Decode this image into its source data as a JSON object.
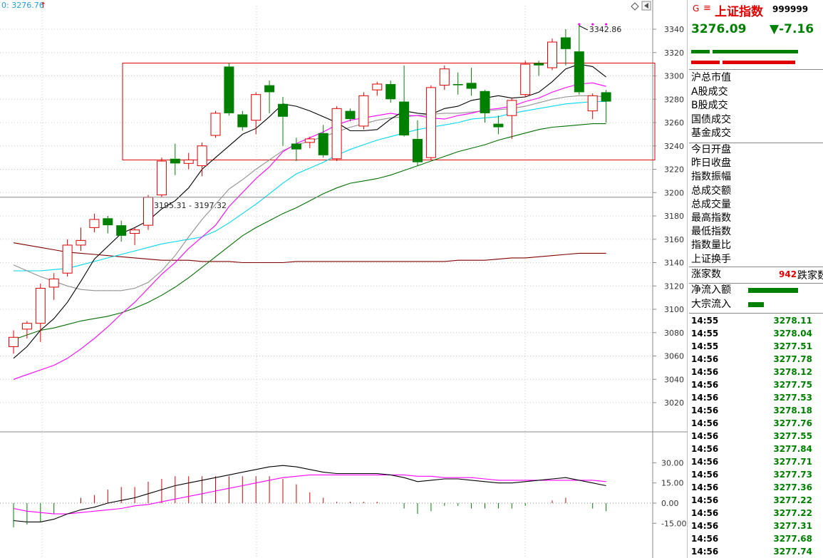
{
  "header": {
    "readout": "0: 3276.76",
    "arrow": "↑"
  },
  "index": {
    "badge_g": "G",
    "badge_e": "≡",
    "name": "上证指数",
    "code": "999999",
    "price": "3276.09",
    "change": "▼-7.16",
    "down_color": "#008000",
    "up_color": "#e00000"
  },
  "panel": {
    "labels1": [
      "沪总市值",
      "A股成交",
      "B股成交",
      "国债成交",
      "基金成交"
    ],
    "labels2": [
      "今日开盘",
      "昨日收盘",
      "指数振幅",
      "总成交额",
      "总成交量",
      "最高指数",
      "最低指数",
      "指数量比",
      "上证换手"
    ],
    "breadth": {
      "up_label": "涨家数",
      "down_value": "942",
      "down_label": "跌家数"
    },
    "flows": [
      {
        "label": "净流入额",
        "level": 0.78
      },
      {
        "label": "大宗流入",
        "level": 0.24
      }
    ],
    "ratio_bars": {
      "green_top": 0.8,
      "red_bottom": 0.8
    }
  },
  "ticks": [
    {
      "time": "14:55",
      "price": "3278.11"
    },
    {
      "time": "14:55",
      "price": "3278.04"
    },
    {
      "time": "14:55",
      "price": "3277.51"
    },
    {
      "time": "14:56",
      "price": "3277.78"
    },
    {
      "time": "14:56",
      "price": "3278.12"
    },
    {
      "time": "14:56",
      "price": "3277.75"
    },
    {
      "time": "14:56",
      "price": "3277.53"
    },
    {
      "time": "14:56",
      "price": "3278.18"
    },
    {
      "time": "14:56",
      "price": "3277.76"
    },
    {
      "time": "14:56",
      "price": "3277.55"
    },
    {
      "time": "14:56",
      "price": "3277.84"
    },
    {
      "time": "14:56",
      "price": "3277.71"
    },
    {
      "time": "14:56",
      "price": "3277.73"
    },
    {
      "time": "14:56",
      "price": "3277.36"
    },
    {
      "time": "14:56",
      "price": "3277.22"
    },
    {
      "time": "14:56",
      "price": "3277.22"
    },
    {
      "time": "14:56",
      "price": "3277.31"
    },
    {
      "time": "14:56",
      "price": "3277.68"
    },
    {
      "time": "14:56",
      "price": "3277.74"
    }
  ],
  "chart_data": [
    {
      "type": "candlestick",
      "title": "",
      "ylim": [
        3000,
        3355
      ],
      "yticks": [
        3020,
        3040,
        3060,
        3080,
        3100,
        3120,
        3140,
        3160,
        3180,
        3200,
        3220,
        3240,
        3260,
        3280,
        3300,
        3320,
        3340
      ],
      "annotations": {
        "high_label": "3342.86",
        "level_label": "3195.31 - 3197.32",
        "level_value": 3196
      },
      "box": {
        "y_top": 3311,
        "y_bottom": 3228
      },
      "colors": {
        "up": "#e00000",
        "down": "#008000",
        "ma5": "#000000",
        "ma10": "#ff00ff",
        "ma20": "#909090",
        "ma30": "#00d8f0",
        "ma60": "#007000",
        "ma120": "#800000"
      },
      "candles": [
        {
          "o": 3068,
          "c": 3076,
          "h": 3082,
          "l": 3062
        },
        {
          "o": 3083,
          "c": 3088,
          "h": 3090,
          "l": 3075
        },
        {
          "o": 3088,
          "c": 3118,
          "h": 3122,
          "l": 3072
        },
        {
          "o": 3119,
          "c": 3126,
          "h": 3131,
          "l": 3108
        },
        {
          "o": 3131,
          "c": 3155,
          "h": 3160,
          "l": 3128
        },
        {
          "o": 3155,
          "c": 3159,
          "h": 3170,
          "l": 3150
        },
        {
          "o": 3170,
          "c": 3177,
          "h": 3182,
          "l": 3166
        },
        {
          "o": 3178,
          "c": 3172,
          "h": 3180,
          "l": 3165
        },
        {
          "o": 3172,
          "c": 3163,
          "h": 3176,
          "l": 3158
        },
        {
          "o": 3165,
          "c": 3168,
          "h": 3170,
          "l": 3155
        },
        {
          "o": 3172,
          "c": 3196,
          "h": 3198,
          "l": 3168
        },
        {
          "o": 3198,
          "c": 3227,
          "h": 3230,
          "l": 3196
        },
        {
          "o": 3229,
          "c": 3225,
          "h": 3242,
          "l": 3215
        },
        {
          "o": 3225,
          "c": 3228,
          "h": 3234,
          "l": 3220
        },
        {
          "o": 3223,
          "c": 3240,
          "h": 3243,
          "l": 3214
        },
        {
          "o": 3249,
          "c": 3268,
          "h": 3270,
          "l": 3247
        },
        {
          "o": 3308,
          "c": 3268,
          "h": 3311,
          "l": 3266
        },
        {
          "o": 3267,
          "c": 3256,
          "h": 3270,
          "l": 3253
        },
        {
          "o": 3262,
          "c": 3284,
          "h": 3286,
          "l": 3250
        },
        {
          "o": 3292,
          "c": 3286,
          "h": 3296,
          "l": 3268
        },
        {
          "o": 3276,
          "c": 3265,
          "h": 3282,
          "l": 3240
        },
        {
          "o": 3242,
          "c": 3237,
          "h": 3247,
          "l": 3227
        },
        {
          "o": 3243,
          "c": 3246,
          "h": 3248,
          "l": 3238
        },
        {
          "o": 3251,
          "c": 3232,
          "h": 3258,
          "l": 3230
        },
        {
          "o": 3229,
          "c": 3272,
          "h": 3274,
          "l": 3227
        },
        {
          "o": 3270,
          "c": 3263,
          "h": 3272,
          "l": 3261
        },
        {
          "o": 3257,
          "c": 3283,
          "h": 3286,
          "l": 3254
        },
        {
          "o": 3288,
          "c": 3293,
          "h": 3295,
          "l": 3283
        },
        {
          "o": 3293,
          "c": 3280,
          "h": 3296,
          "l": 3277
        },
        {
          "o": 3278,
          "c": 3249,
          "h": 3309,
          "l": 3248
        },
        {
          "o": 3246,
          "c": 3226,
          "h": 3262,
          "l": 3223
        },
        {
          "o": 3230,
          "c": 3290,
          "h": 3292,
          "l": 3228
        },
        {
          "o": 3292,
          "c": 3306,
          "h": 3309,
          "l": 3288
        },
        {
          "o": 3293,
          "c": 3292,
          "h": 3303,
          "l": 3284
        },
        {
          "o": 3294,
          "c": 3289,
          "h": 3307,
          "l": 3283
        },
        {
          "o": 3287,
          "c": 3268,
          "h": 3288,
          "l": 3260
        },
        {
          "o": 3259,
          "c": 3256,
          "h": 3266,
          "l": 3250
        },
        {
          "o": 3266,
          "c": 3279,
          "h": 3281,
          "l": 3246
        },
        {
          "o": 3284,
          "c": 3310,
          "h": 3313,
          "l": 3282
        },
        {
          "o": 3311,
          "c": 3309,
          "h": 3313,
          "l": 3300
        },
        {
          "o": 3307,
          "c": 3329,
          "h": 3332,
          "l": 3305
        },
        {
          "o": 3333,
          "c": 3323,
          "h": 3340,
          "l": 3309
        },
        {
          "o": 3321,
          "c": 3286,
          "h": 3343,
          "l": 3284
        },
        {
          "o": 3270,
          "c": 3283,
          "h": 3285,
          "l": 3263
        },
        {
          "o": 3286,
          "c": 3278,
          "h": 3288,
          "l": 3260
        }
      ],
      "ma": {
        "ma5": [
          3058,
          3068,
          3082,
          3092,
          3106,
          3124,
          3143,
          3154,
          3165,
          3170,
          3176,
          3186,
          3193,
          3204,
          3220,
          3230,
          3240,
          3250,
          3255,
          3265,
          3276,
          3274,
          3270,
          3265,
          3260,
          3253,
          3253,
          3254,
          3263,
          3270,
          3268,
          3267,
          3272,
          3274,
          3279,
          3281,
          3283,
          3281,
          3282,
          3286,
          3295,
          3306,
          3310,
          3308,
          3299
        ],
        "ma10": [
          3040,
          3044,
          3048,
          3052,
          3058,
          3066,
          3075,
          3085,
          3096,
          3106,
          3118,
          3130,
          3140,
          3152,
          3162,
          3172,
          3188,
          3200,
          3212,
          3222,
          3235,
          3242,
          3247,
          3252,
          3258,
          3262,
          3264,
          3266,
          3268,
          3266,
          3266,
          3264,
          3263,
          3266,
          3268,
          3271,
          3272,
          3274,
          3278,
          3281,
          3286,
          3290,
          3293,
          3294,
          3291
        ],
        "ma20": [
          3138,
          3133,
          3128,
          3124,
          3120,
          3117,
          3116,
          3116,
          3116,
          3118,
          3123,
          3133,
          3146,
          3162,
          3177,
          3190,
          3203,
          3211,
          3220,
          3228,
          3236,
          3241,
          3244,
          3248,
          3252,
          3256,
          3259,
          3262,
          3264,
          3265,
          3266,
          3267,
          3268,
          3268,
          3269,
          3270,
          3271,
          3272,
          3274,
          3277,
          3280,
          3282,
          3283,
          3283,
          3282
        ],
        "ma30": [
          3133,
          3133,
          3133,
          3134,
          3135,
          3138,
          3141,
          3144,
          3147,
          3150,
          3153,
          3156,
          3158,
          3160,
          3162,
          3167,
          3174,
          3182,
          3190,
          3199,
          3208,
          3216,
          3221,
          3226,
          3232,
          3237,
          3241,
          3245,
          3248,
          3251,
          3254,
          3256,
          3258,
          3260,
          3263,
          3264,
          3265,
          3268,
          3270,
          3272,
          3274,
          3276,
          3277,
          3278,
          3278
        ],
        "ma60": [
          3074,
          3078,
          3082,
          3084,
          3087,
          3090,
          3092,
          3094,
          3097,
          3101,
          3106,
          3112,
          3119,
          3127,
          3136,
          3145,
          3154,
          3163,
          3170,
          3176,
          3182,
          3187,
          3193,
          3199,
          3204,
          3208,
          3210,
          3212,
          3215,
          3219,
          3223,
          3227,
          3231,
          3235,
          3238,
          3241,
          3245,
          3248,
          3251,
          3254,
          3256,
          3257,
          3258,
          3259,
          3259
        ],
        "ma120": [
          3157,
          3155,
          3153,
          3151,
          3149,
          3148,
          3147,
          3146,
          3145,
          3144,
          3143,
          3142,
          3142,
          3142,
          3141,
          3141,
          3141,
          3140,
          3140,
          3140,
          3140,
          3141,
          3141,
          3141,
          3141,
          3141,
          3141,
          3141,
          3141,
          3141,
          3141,
          3141,
          3141,
          3142,
          3142,
          3142,
          3143,
          3144,
          3144,
          3145,
          3146,
          3147,
          3148,
          3148,
          3148
        ]
      }
    },
    {
      "type": "macd",
      "title": "",
      "ylim": [
        -22,
        44
      ],
      "yticks": [
        -15.0,
        0.0,
        15.0,
        30.0
      ],
      "ytick_labels": [
        "-15.00",
        "0.00",
        "15.00",
        "30.00"
      ],
      "colors": {
        "dif": "#000000",
        "dea": "#ff00ff",
        "pos": "#e00000",
        "neg": "#008000"
      },
      "dif": [
        -13,
        -14,
        -14,
        -12,
        -8,
        -5,
        -3,
        0,
        2,
        4,
        7,
        10,
        13,
        15,
        17,
        19,
        21,
        23,
        25,
        27,
        28,
        27,
        25,
        23,
        22,
        22,
        22,
        22,
        21,
        19,
        16,
        17,
        18,
        18,
        17,
        16,
        15,
        15,
        16,
        17,
        18,
        19,
        17,
        15,
        13
      ],
      "dea": [
        -4,
        -6,
        -7,
        -8,
        -8,
        -7,
        -6,
        -5,
        -4,
        -2,
        -1,
        1,
        3,
        5,
        7,
        9,
        11,
        13,
        15,
        17,
        19,
        20,
        21,
        21,
        21,
        21,
        21,
        21,
        21,
        21,
        20,
        20,
        19,
        19,
        19,
        18,
        17,
        17,
        17,
        17,
        17,
        17,
        17,
        17,
        16
      ],
      "hist": [
        -18,
        -16,
        -14,
        -8,
        0,
        4,
        6,
        10,
        12,
        12,
        16,
        18,
        20,
        20,
        20,
        20,
        20,
        20,
        20,
        20,
        18,
        14,
        8,
        4,
        1,
        1,
        1,
        1,
        0,
        -4,
        -8,
        -6,
        -2,
        -2,
        -4,
        -4,
        -4,
        -4,
        -2,
        0,
        2,
        4,
        0,
        -4,
        -6
      ]
    }
  ]
}
